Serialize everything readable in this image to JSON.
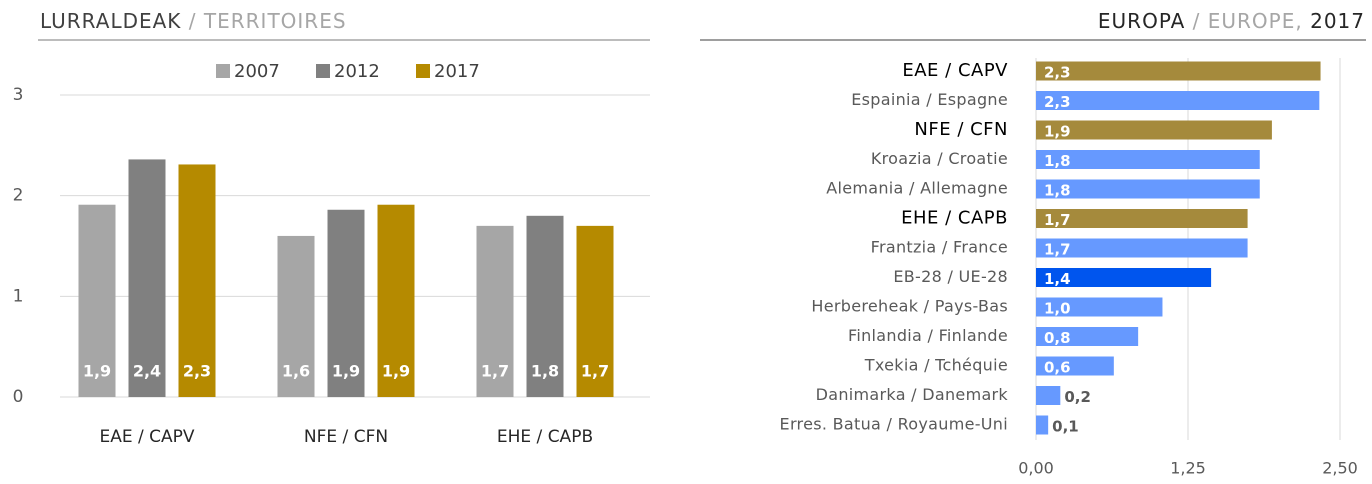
{
  "chart_data": [
    {
      "type": "bar",
      "title": [
        "LURRALDEAK",
        "/ TERRITOIRES"
      ],
      "categories": [
        "EAE / CAPV",
        "NFE / CFN",
        "EHE / CAPB"
      ],
      "series": [
        {
          "name": "2007",
          "color": "#a6a6a6",
          "values": [
            1.91,
            1.6,
            1.7
          ],
          "value_labels": [
            "1,9",
            "1,6",
            "1,7"
          ]
        },
        {
          "name": "2012",
          "color": "#808080",
          "values": [
            2.36,
            1.86,
            1.8
          ],
          "value_labels": [
            "2,4",
            "1,9",
            "1,8"
          ]
        },
        {
          "name": "2017",
          "color": "#b58a00",
          "values": [
            2.31,
            1.91,
            1.7
          ],
          "value_labels": [
            "2,3",
            "1,9",
            "1,7"
          ]
        }
      ],
      "ylim": [
        0,
        3
      ],
      "yticks": [
        0,
        1,
        2,
        3
      ],
      "grid": true,
      "legend": "top"
    },
    {
      "type": "hbar",
      "title": [
        "EUROPA",
        "/ EUROPE,",
        "2017"
      ],
      "categories": [
        "EAE / CAPV",
        "Espainia / Espagne",
        "NFE / CFN",
        "Kroazia / Croatie",
        "Alemania / Allemagne",
        "EHE / CAPB",
        "Frantzia / France",
        "EB-28 / UE-28",
        "Herbereheak / Pays-Bas",
        "Finlandia / Finlande",
        "Txekia / Tchéquie",
        "Danimarka / Danemark",
        "Erres. Batua / Royaume-Uni"
      ],
      "values": [
        2.34,
        2.33,
        1.94,
        1.84,
        1.84,
        1.74,
        1.74,
        1.44,
        1.04,
        0.84,
        0.64,
        0.2,
        0.1
      ],
      "value_labels": [
        "2,3",
        "2,3",
        "1,9",
        "1,8",
        "1,8",
        "1,7",
        "1,7",
        "1,4",
        "1,0",
        "0,8",
        "0,6",
        "0,2",
        "0,1"
      ],
      "colors": [
        "#a58a3c",
        "#6699ff",
        "#a58a3c",
        "#6699ff",
        "#6699ff",
        "#a58a3c",
        "#6699ff",
        "#0055ee",
        "#6699ff",
        "#6699ff",
        "#6699ff",
        "#6699ff",
        "#6699ff"
      ],
      "emphasis": [
        true,
        false,
        true,
        false,
        false,
        true,
        false,
        false,
        false,
        false,
        false,
        false,
        false
      ],
      "xlim": [
        0,
        2.5
      ],
      "xticks": [
        {
          "value": 0,
          "label": "0,00"
        },
        {
          "value": 1.25,
          "label": "1,25"
        },
        {
          "value": 2.5,
          "label": "2,50"
        }
      ],
      "grid": true
    }
  ]
}
